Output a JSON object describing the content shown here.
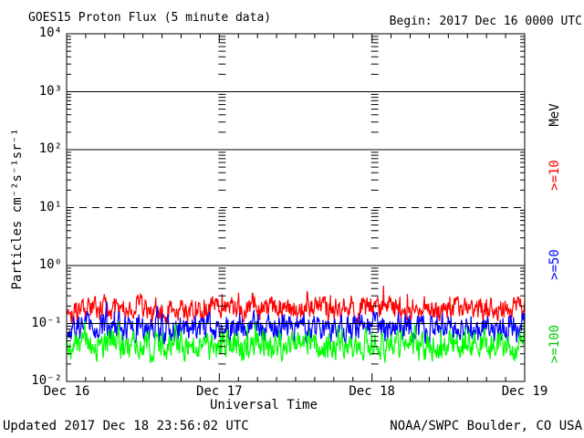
{
  "header": {
    "title": "GOES15 Proton Flux (5 minute data)",
    "begin_label": "Begin: 2017 Dec 16 0000 UTC"
  },
  "footer": {
    "updated": "Updated 2017 Dec 18 23:56:02 UTC",
    "source": "NOAA/SWPC Boulder, CO USA"
  },
  "chart_data": {
    "type": "line",
    "title": "GOES15 Proton Flux (5 minute data)",
    "xlabel": "Universal Time",
    "ylabel": "Particles cm⁻²s⁻¹sr⁻¹",
    "right_axis_label": "MeV",
    "x_start": "2017 Dec 16 0000 UTC",
    "x_days": 3,
    "xticks": [
      "Dec 16",
      "Dec 17",
      "Dec 18",
      "Dec 19"
    ],
    "x_minor_tick_hours": 3,
    "ylim": [
      0.01,
      10000
    ],
    "yscale": "log",
    "ytick_labels": [
      "10⁴",
      "10³",
      "10²",
      "10¹",
      "10⁰",
      "10⁻¹",
      "10⁻²"
    ],
    "ytick_exponents": [
      4,
      3,
      2,
      1,
      0,
      -1,
      -2
    ],
    "solid_gridline_exponents": [
      3,
      2,
      0,
      -1
    ],
    "dashed_gridline_exponents": [
      1
    ],
    "right_labels": {
      "mev": "MeV",
      "ge10": ">=10",
      "ge50": ">=50",
      "ge100": ">=100"
    },
    "colors": {
      "ge10": "#ff0000",
      "ge50": "#0000ff",
      "ge100": "#00ff00",
      "axis": "#000000",
      "background": "#ffffff"
    },
    "series": [
      {
        "label": ">=10",
        "unit": "MeV",
        "color": "#ff0000",
        "points": 864,
        "approx_mean_flux": 0.18,
        "approx_range": [
          0.1,
          0.45
        ],
        "noise_dex": 0.17,
        "seed": 101
      },
      {
        "label": ">=50",
        "unit": "MeV",
        "color": "#0000ff",
        "points": 864,
        "approx_mean_flux": 0.085,
        "approx_range": [
          0.045,
          0.24
        ],
        "noise_dex": 0.19,
        "seed": 202
      },
      {
        "label": ">=100",
        "unit": "MeV",
        "color": "#00ff00",
        "points": 864,
        "approx_mean_flux": 0.042,
        "approx_range": [
          0.016,
          0.11
        ],
        "noise_dex": 0.2,
        "seed": 303
      }
    ]
  }
}
